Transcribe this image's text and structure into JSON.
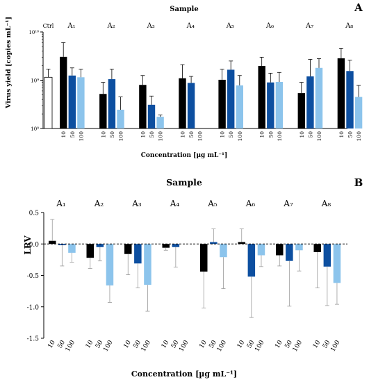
{
  "chart_data": [
    {
      "panel_label": "A",
      "type": "bar",
      "title": "Sample",
      "ylabel": "Virus yield [copies mL⁻¹]",
      "xlabel": "Concentration [µg mL⁻¹]",
      "y_scale": "log",
      "ylim": [
        100000000,
        10000000000
      ],
      "y_ticks": [
        100000000,
        1000000000,
        10000000000
      ],
      "y_tick_labels": [
        "10⁸",
        "10⁹",
        "10¹⁰"
      ],
      "grid": false,
      "legend": "none",
      "control": {
        "label": "Ctrl",
        "value": 1150000000,
        "error": 1700000000,
        "color": "#ffffff"
      },
      "concentrations": [
        "10",
        "50",
        "100"
      ],
      "bar_colors": [
        "#000000",
        "#0d4fa0",
        "#8cc4ec"
      ],
      "groups": [
        {
          "label": "A₁",
          "values": [
            3050000000,
            1250000000,
            1150000000
          ],
          "errors": [
            6000000000,
            1800000000,
            1700000000
          ]
        },
        {
          "label": "A₂",
          "values": [
            520000000,
            1050000000,
            245000000
          ],
          "errors": [
            900000000,
            1700000000,
            450000000
          ]
        },
        {
          "label": "A₃",
          "values": [
            800000000,
            310000000,
            175000000
          ],
          "errors": [
            1250000000,
            470000000,
            190000000
          ]
        },
        {
          "label": "A₄",
          "values": [
            1100000000,
            880000000,
            null
          ],
          "errors": [
            2100000000,
            1200000000,
            null
          ]
        },
        {
          "label": "A₅",
          "values": [
            1020000000,
            1650000000,
            780000000
          ],
          "errors": [
            1700000000,
            2500000000,
            1250000000
          ]
        },
        {
          "label": "A₆",
          "values": [
            1970000000,
            900000000,
            920000000
          ],
          "errors": [
            3000000000,
            1400000000,
            1450000000
          ]
        },
        {
          "label": "A₇",
          "values": [
            540000000,
            1200000000,
            1800000000
          ],
          "errors": [
            900000000,
            2700000000,
            2800000000
          ]
        },
        {
          "label": "A₈",
          "values": [
            2850000000,
            1550000000,
            450000000
          ],
          "errors": [
            4600000000,
            2600000000,
            780000000
          ]
        }
      ]
    },
    {
      "panel_label": "B",
      "type": "bar",
      "title": "Sample",
      "ylabel": "LRV",
      "xlabel": "Concentration [µg mL⁻¹]",
      "ylim": [
        -1.5,
        0.5
      ],
      "y_ticks": [
        -1.5,
        -1.0,
        -0.5,
        0.0,
        0.5
      ],
      "y_tick_labels": [
        "-1.5",
        "-1.0",
        "-0.5",
        "0.0",
        "0.5"
      ],
      "reference_line": 0,
      "grid": false,
      "legend": "none",
      "concentrations": [
        "10",
        "50",
        "100"
      ],
      "bar_colors": [
        "#000000",
        "#0d4fa0",
        "#8cc4ec"
      ],
      "groups": [
        {
          "label": "A₁",
          "values": [
            0.05,
            -0.02,
            -0.14
          ],
          "errors": [
            0.34,
            0.33,
            0.15
          ]
        },
        {
          "label": "A₂",
          "values": [
            -0.22,
            -0.05,
            -0.66
          ],
          "errors": [
            0.17,
            0.22,
            0.27
          ]
        },
        {
          "label": "A₃",
          "values": [
            -0.16,
            -0.31,
            -0.65
          ],
          "errors": [
            0.33,
            0.39,
            0.42
          ]
        },
        {
          "label": "A₄",
          "values": [
            -0.06,
            -0.05,
            null
          ],
          "errors": [
            0.04,
            0.32,
            null
          ]
        },
        {
          "label": "A₅",
          "values": [
            -0.44,
            0.03,
            -0.21
          ],
          "errors": [
            0.58,
            0.21,
            0.5
          ]
        },
        {
          "label": "A₆",
          "values": [
            0.03,
            -0.52,
            -0.18
          ],
          "errors": [
            0.21,
            0.65,
            0.18
          ]
        },
        {
          "label": "A₇",
          "values": [
            -0.18,
            -0.27,
            -0.1
          ],
          "errors": [
            0.17,
            0.72,
            0.33
          ]
        },
        {
          "label": "A₈",
          "values": [
            -0.13,
            -0.36,
            -0.62
          ],
          "errors": [
            0.57,
            0.62,
            0.34
          ]
        }
      ]
    }
  ]
}
